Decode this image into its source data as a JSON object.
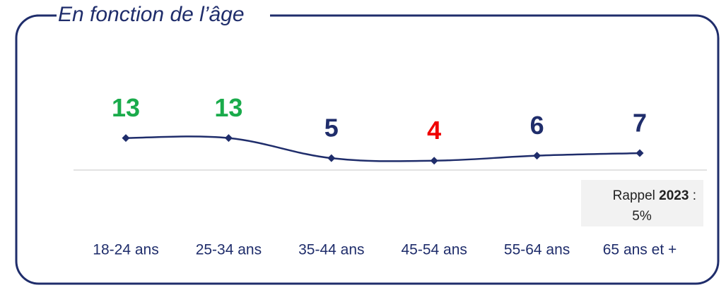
{
  "chart_data": {
    "type": "line",
    "title": "En fonction de l’âge",
    "categories": [
      "18-24 ans",
      "25-34 ans",
      "35-44 ans",
      "45-54 ans",
      "55-64 ans",
      "65 ans et +"
    ],
    "values": [
      13,
      13,
      5,
      4,
      6,
      7
    ],
    "color": "#1f2d6b",
    "label_colors": [
      "#1aab4b",
      "#1aab4b",
      "#1f2d6b",
      "#f00000",
      "#1f2d6b",
      "#1f2d6b"
    ],
    "ylim": [
      0,
      30
    ],
    "annotation": {
      "label": "Rappel",
      "year": "2023",
      "separator": ":",
      "value": "5%"
    }
  }
}
